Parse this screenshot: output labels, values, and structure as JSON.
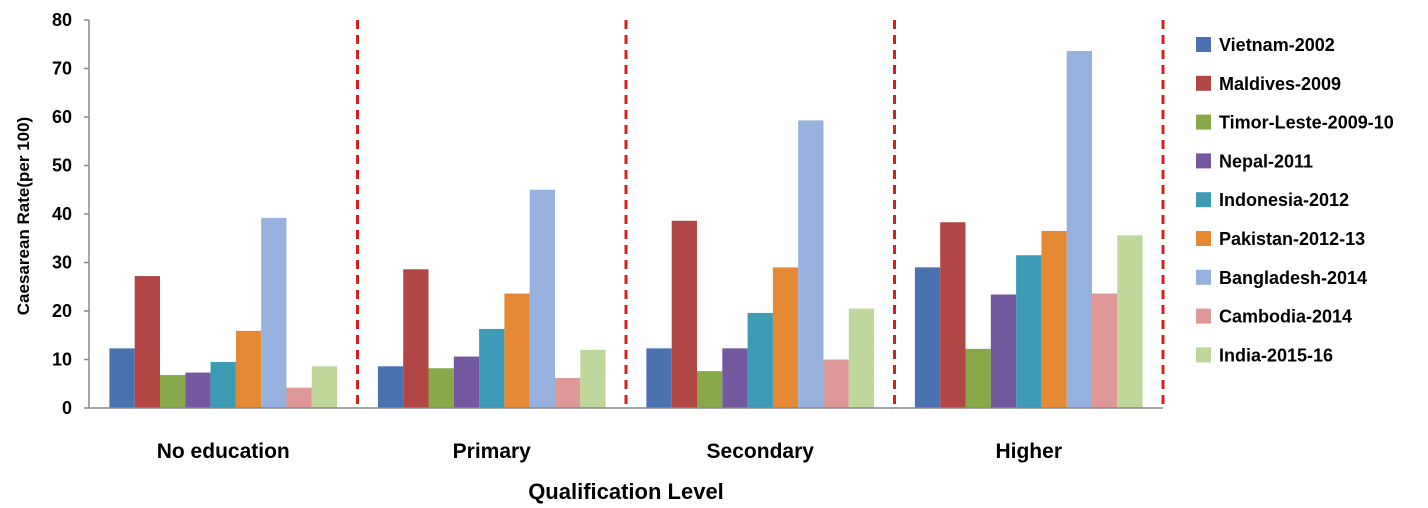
{
  "chart_data": {
    "type": "bar",
    "title": "",
    "xlabel": "Qualification Level",
    "ylabel": "Caesarean Rate(per 100)",
    "ylim": [
      0,
      80
    ],
    "yticks": [
      0,
      10,
      20,
      30,
      40,
      50,
      60,
      70,
      80
    ],
    "grid": false,
    "legend_position": "right",
    "separators": "red dashed vertical lines between categories",
    "categories": [
      "No education",
      "Primary",
      "Secondary",
      "Higher"
    ],
    "series": [
      {
        "name": "Vietnam-2002",
        "color": "#4a72b0",
        "values": [
          12.3,
          8.6,
          12.3,
          29.0
        ]
      },
      {
        "name": "Maldives-2009",
        "color": "#b24644",
        "values": [
          27.2,
          28.6,
          38.6,
          38.3
        ]
      },
      {
        "name": "Timor-Leste-2009-10",
        "color": "#88a94a",
        "values": [
          6.8,
          8.2,
          7.6,
          12.2
        ]
      },
      {
        "name": "Nepal-2011",
        "color": "#7459a0",
        "values": [
          7.3,
          10.6,
          12.3,
          23.4
        ]
      },
      {
        "name": "Indonesia-2012",
        "color": "#3d9bb6",
        "values": [
          9.5,
          16.3,
          19.6,
          31.5
        ]
      },
      {
        "name": "Pakistan-2012-13",
        "color": "#e58935",
        "values": [
          15.9,
          23.6,
          29.0,
          36.5
        ]
      },
      {
        "name": "Bangladesh-2014",
        "color": "#97b1de",
        "values": [
          39.2,
          45.0,
          59.3,
          73.6
        ]
      },
      {
        "name": "Cambodia-2014",
        "color": "#df9898",
        "values": [
          4.2,
          6.2,
          10.0,
          23.6
        ]
      },
      {
        "name": "India-2015-16",
        "color": "#bfd79b",
        "values": [
          8.6,
          12.0,
          20.5,
          35.6
        ]
      }
    ]
  }
}
